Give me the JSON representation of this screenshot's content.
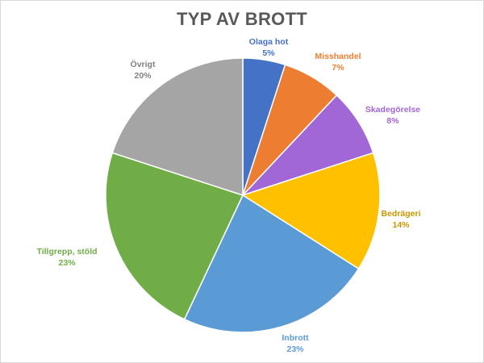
{
  "chart_data": {
    "type": "pie",
    "title": "TYP AV BROTT",
    "slices": [
      {
        "label": "Olaga hot",
        "value": 5,
        "value_label": "5%",
        "color": "#4472c4"
      },
      {
        "label": "Misshandel",
        "value": 7,
        "value_label": "7%",
        "color": "#ed7d31"
      },
      {
        "label": "Skadegörelse",
        "value": 8,
        "value_label": "8%",
        "color": "#a267d6"
      },
      {
        "label": "Bedrägeri",
        "value": 14,
        "value_label": "14%",
        "color": "#ffc000"
      },
      {
        "label": "Inbrott",
        "value": 23,
        "value_label": "23%",
        "color": "#5b9bd5"
      },
      {
        "label": "Tillgrepp, stöld",
        "value": 23,
        "value_label": "23%",
        "color": "#70ad47"
      },
      {
        "label": "Övrigt",
        "value": 20,
        "value_label": "20%",
        "color": "#a5a5a5"
      }
    ],
    "label_colors": [
      "#4472c4",
      "#ed7d31",
      "#a267d6",
      "#c79700",
      "#5b9bd5",
      "#70ad47",
      "#808080"
    ]
  }
}
